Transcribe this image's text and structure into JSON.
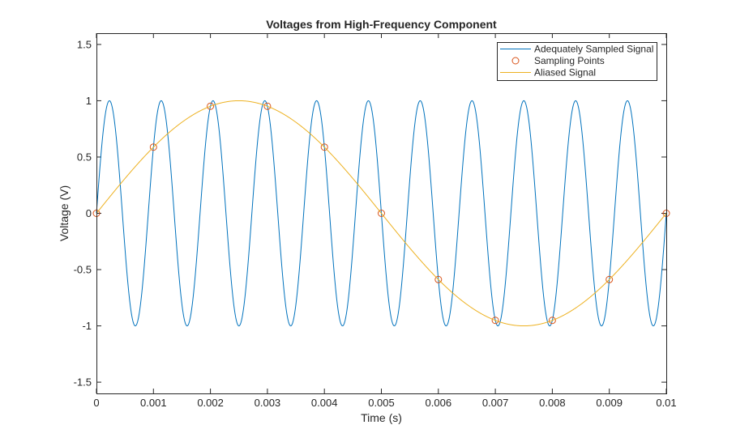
{
  "chart_data": {
    "type": "line",
    "title": "Voltages from High-Frequency Component",
    "xlabel": "Time (s)",
    "ylabel": "Voltage (V)",
    "xlim": [
      0,
      0.01
    ],
    "ylim": [
      -1.6,
      1.6
    ],
    "x_ticks": [
      "0",
      "0.001",
      "0.002",
      "0.003",
      "0.004",
      "0.005",
      "0.006",
      "0.007",
      "0.008",
      "0.009",
      "0.01"
    ],
    "y_ticks": [
      "-1.5",
      "-1",
      "-0.5",
      "0",
      "0.5",
      "1",
      "1.5"
    ],
    "grid": false,
    "legend_position": "top-right",
    "series": [
      {
        "name": "Adequately Sampled Signal",
        "kind": "line",
        "color": "#0072BD",
        "function": "sin(2*pi*1100*t)",
        "frequency_hz": 1100,
        "amplitude": 1,
        "x_range": [
          0,
          0.01
        ]
      },
      {
        "name": "Sampling Points",
        "kind": "markers",
        "marker": "circle",
        "color": "#D95319",
        "x": [
          0,
          0.001,
          0.002,
          0.003,
          0.004,
          0.005,
          0.006,
          0.007,
          0.008,
          0.009,
          0.01
        ],
        "y": [
          0,
          0.588,
          0.951,
          0.951,
          0.588,
          0,
          -0.588,
          -0.951,
          -0.951,
          -0.588,
          0
        ]
      },
      {
        "name": "Aliased Signal",
        "kind": "line",
        "color": "#EDB120",
        "function": "sin(2*pi*100*t)",
        "frequency_hz": 100,
        "amplitude": 1,
        "x_range": [
          0,
          0.01
        ]
      }
    ]
  }
}
